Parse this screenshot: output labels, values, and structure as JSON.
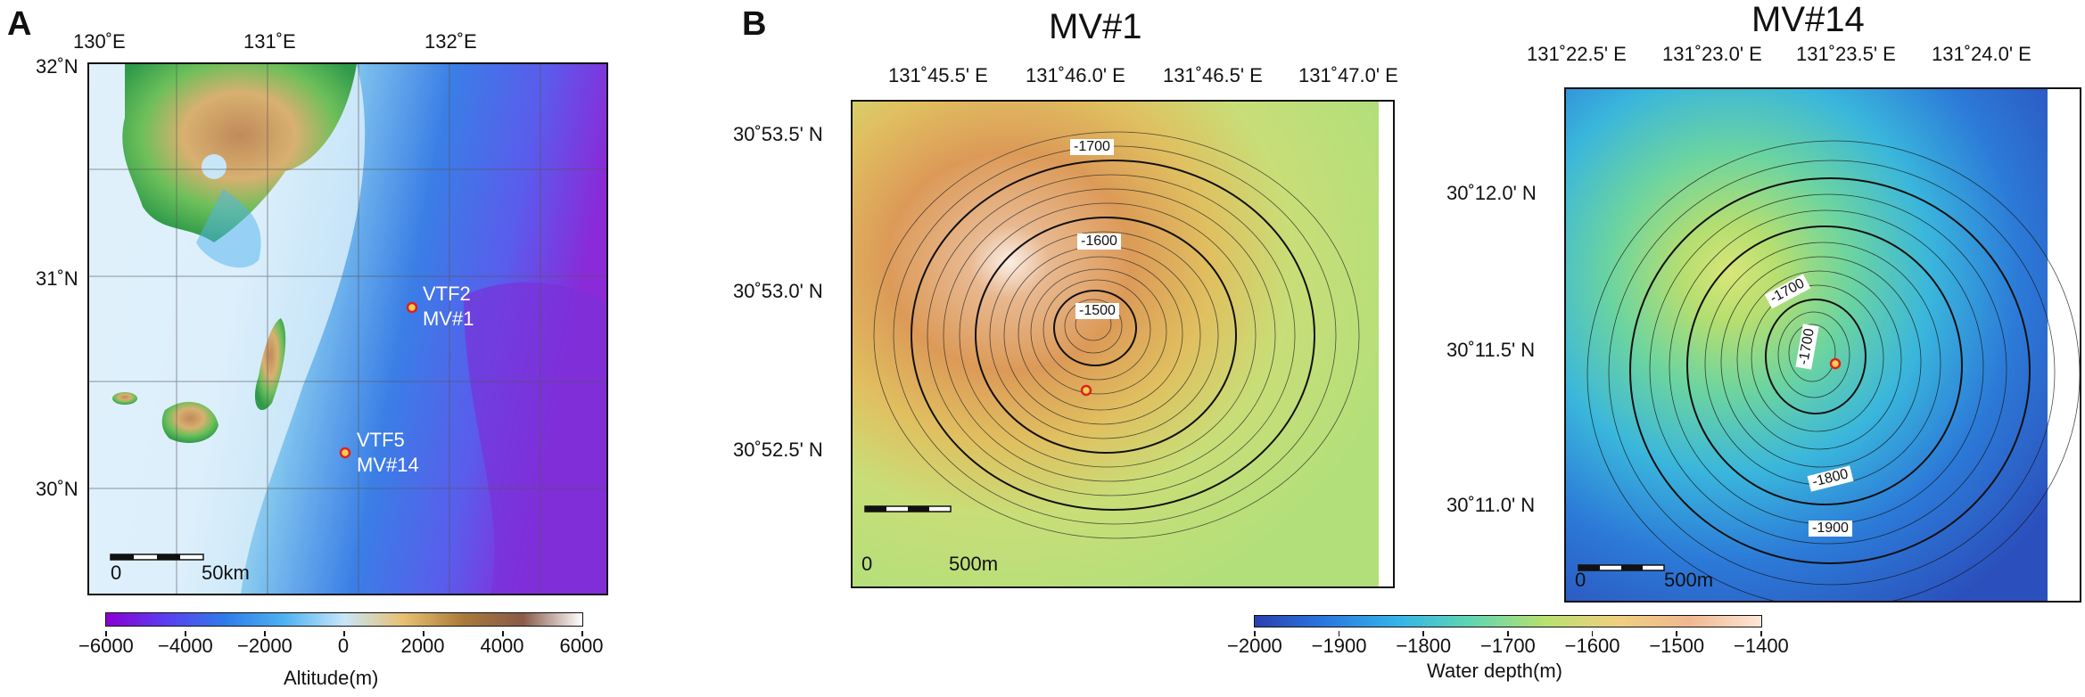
{
  "panel_a": {
    "letter": "A",
    "lon_ticks": [
      "130˚E",
      "131˚E",
      "132˚E"
    ],
    "lat_ticks": [
      "32˚N",
      "31˚N",
      "30˚N"
    ],
    "sites": [
      {
        "name": "VTF2",
        "mv": "MV#1"
      },
      {
        "name": "VTF5",
        "mv": "MV#14"
      }
    ],
    "scale": {
      "start": "0",
      "end": "50km"
    },
    "colorbar": {
      "ticks": [
        "−6000",
        "−4000",
        "−2000",
        "0",
        "2000",
        "4000",
        "6000"
      ],
      "label": "Altitude(m)",
      "colors": [
        "#8a00d4",
        "#5a3ef0",
        "#2f7ce8",
        "#4fb3f0",
        "#c8e6f8",
        "#e8c070",
        "#a97a3a",
        "#8a5a4a",
        "#ffffff"
      ]
    }
  },
  "panel_b": {
    "letter": "B",
    "mv1": {
      "title": "MV#1",
      "lon_ticks": [
        "131˚45.5' E",
        "131˚46.0' E",
        "131˚46.5' E",
        "131˚47.0' E"
      ],
      "lat_ticks": [
        "30˚53.5' N",
        "30˚53.0' N",
        "30˚52.5' N"
      ],
      "contour_labels": [
        "-1700",
        "-1600",
        "-1500"
      ],
      "scale": {
        "start": "0",
        "end": "500m"
      }
    },
    "mv14": {
      "title": "MV#14",
      "lon_ticks": [
        "131˚22.5' E",
        "131˚23.0' E",
        "131˚23.5' E",
        "131˚24.0' E"
      ],
      "lat_ticks": [
        "30˚12.0' N",
        "30˚11.5' N",
        "30˚11.0' N"
      ],
      "contour_labels": [
        "-1700",
        "-1700",
        "-1800",
        "-1900"
      ],
      "scale": {
        "start": "0",
        "end": "500m"
      }
    },
    "colorbar": {
      "ticks": [
        "−2000",
        "−1900",
        "−1800",
        "−1700",
        "−1600",
        "−1500",
        "−1400"
      ],
      "label": "Water depth(m)",
      "colors": [
        "#2b3fb0",
        "#2a7ae0",
        "#35b5e8",
        "#60d6b0",
        "#b8e070",
        "#f0d080",
        "#f0b890",
        "#fde6d6"
      ]
    }
  }
}
